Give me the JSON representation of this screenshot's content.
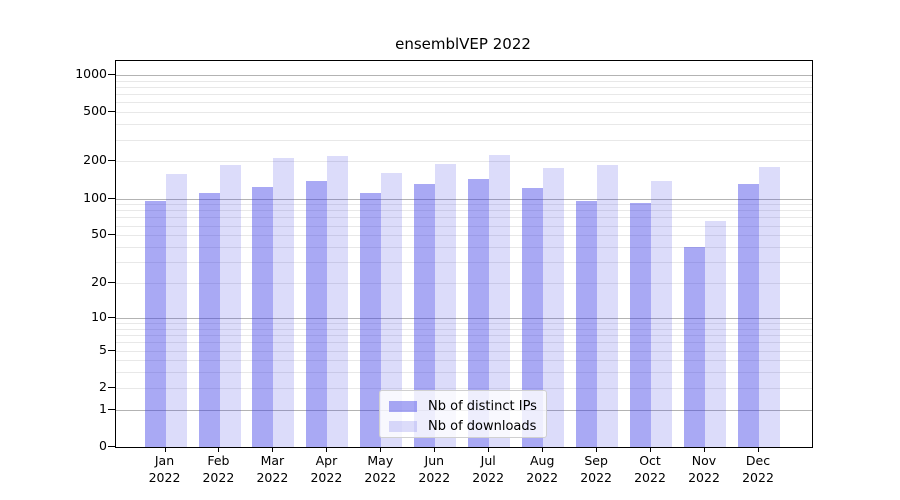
{
  "title": "ensemblVEP 2022",
  "chart_data": {
    "type": "bar",
    "title": "ensemblVEP 2022",
    "xlabel": "",
    "ylabel": "",
    "y_scale": "log10(value+1)",
    "y_ticks": [
      0,
      1,
      2,
      5,
      10,
      20,
      50,
      100,
      200,
      500,
      1000
    ],
    "ylim": [
      0,
      1300
    ],
    "grid": true,
    "legend_position": "lower center",
    "categories": [
      "Jan",
      "Feb",
      "Mar",
      "Apr",
      "May",
      "Jun",
      "Jul",
      "Aug",
      "Sep",
      "Oct",
      "Nov",
      "Dec"
    ],
    "year_label": "2022",
    "series": [
      {
        "name": "Nb of distinct IPs",
        "color": "rgba(60,60,230,0.44)",
        "values": [
          95,
          111,
          123,
          139,
          110,
          131,
          144,
          122,
          95,
          92,
          40,
          131
        ]
      },
      {
        "name": "Nb of downloads",
        "color": "rgba(60,60,230,0.18)",
        "values": [
          158,
          187,
          215,
          220,
          161,
          190,
          225,
          177,
          188,
          139,
          66,
          182
        ]
      }
    ]
  },
  "colors": {
    "grid_major": "#b3b3b3",
    "grid_minor": "#e8e8e8",
    "spine": "#000000",
    "legend_border": "#d0d0d0"
  }
}
